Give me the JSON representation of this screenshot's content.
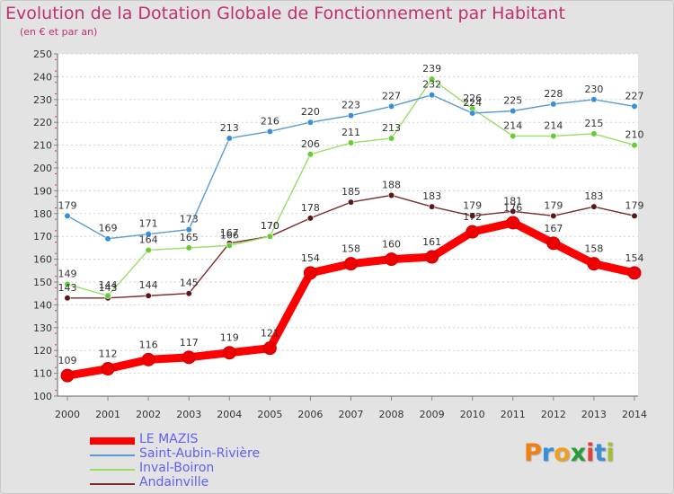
{
  "header": {
    "title": "Evolution de la Dotation Globale de Fonctionnement par Habitant",
    "subtitle": "(en € et par an)"
  },
  "logo": {
    "text": "Proxiti",
    "letters": [
      "P",
      "r",
      "o",
      "x",
      "i",
      "t",
      "i"
    ],
    "letter_colors": [
      "#f08010",
      "#3a8ed8",
      "#f0a020",
      "#2a9a3a",
      "#e04040",
      "#3a8ed8",
      "#a0c030"
    ]
  },
  "chart_data": {
    "type": "line",
    "title": "Evolution de la Dotation Globale de Fonctionnement par Habitant",
    "subtitle": "(en € et par an)",
    "xlabel": "",
    "ylabel": "",
    "x": [
      "2000",
      "2001",
      "2002",
      "2003",
      "2004",
      "2005",
      "2006",
      "2007",
      "2008",
      "2009",
      "2010",
      "2011",
      "2012",
      "2013",
      "2014"
    ],
    "ylim": [
      100,
      250
    ],
    "yticks": [
      100,
      110,
      120,
      130,
      140,
      150,
      160,
      170,
      180,
      190,
      200,
      210,
      220,
      230,
      240,
      250
    ],
    "grid": "horizontal dashed",
    "legend_position": "bottom-left",
    "series": [
      {
        "name": "LE MAZIS",
        "color": "#ff0000",
        "marker_color": "#ee0000",
        "values": [
          109,
          112,
          116,
          117,
          119,
          121,
          154,
          158,
          160,
          161,
          172,
          176,
          167,
          158,
          154
        ]
      },
      {
        "name": "Saint-Aubin-Rivière",
        "color": "#5a9ad4",
        "marker_color": "#3a8ed8",
        "values": [
          179,
          169,
          171,
          173,
          213,
          216,
          220,
          223,
          227,
          232,
          224,
          225,
          228,
          230,
          227
        ]
      },
      {
        "name": "Inval-Boiron",
        "color": "#99dd66",
        "marker_color": "#66cc33",
        "values": [
          149,
          144,
          164,
          165,
          166,
          170,
          206,
          211,
          213,
          239,
          226,
          214,
          214,
          215,
          210
        ]
      },
      {
        "name": "Andainville",
        "color": "#7a2a2a",
        "marker_color": "#5a1818",
        "values": [
          143,
          143,
          144,
          145,
          167,
          170,
          178,
          185,
          188,
          183,
          179,
          181,
          179,
          183,
          179
        ]
      }
    ]
  }
}
